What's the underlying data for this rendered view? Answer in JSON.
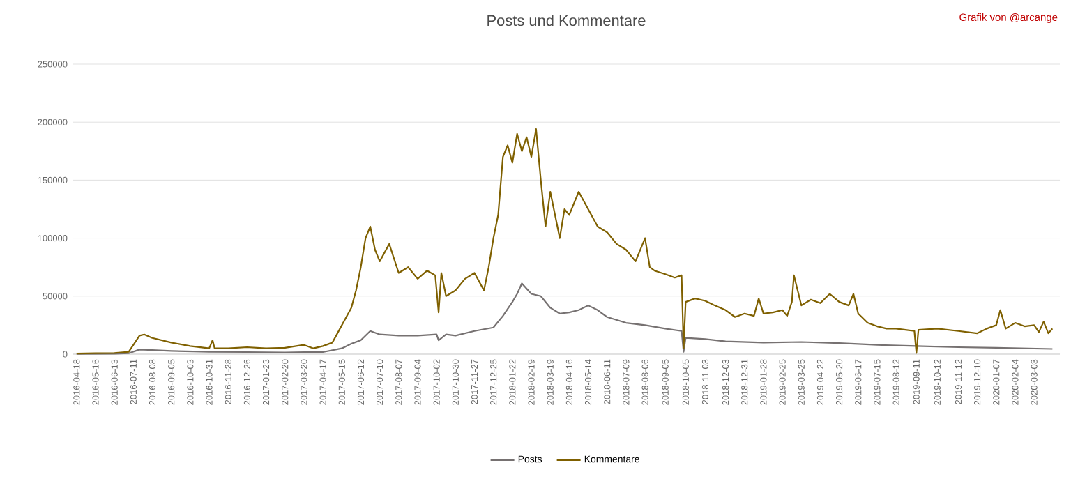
{
  "chart_data": {
    "type": "line",
    "title": "Posts und Kommentare",
    "annotations": [
      "Grafik von @arcange"
    ],
    "xlim": [
      "2016-04-12",
      "2020-04-10"
    ],
    "xticks": [
      "2016-04-18",
      "2016-05-16",
      "2016-06-13",
      "2016-07-11",
      "2016-08-08",
      "2016-09-05",
      "2016-10-03",
      "2016-10-31",
      "2016-11-28",
      "2016-12-26",
      "2017-01-23",
      "2017-02-20",
      "2017-03-20",
      "2017-04-17",
      "2017-05-15",
      "2017-06-12",
      "2017-07-10",
      "2017-08-07",
      "2017-09-04",
      "2017-10-02",
      "2017-10-30",
      "2017-11-27",
      "2017-12-25",
      "2018-01-22",
      "2018-02-19",
      "2018-03-19",
      "2018-04-16",
      "2018-05-14",
      "2018-06-11",
      "2018-07-09",
      "2018-08-06",
      "2018-09-05",
      "2018-10-05",
      "2018-11-03",
      "2018-12-03",
      "2018-12-31",
      "2019-01-28",
      "2019-02-25",
      "2019-03-25",
      "2019-04-22",
      "2019-05-20",
      "2019-06-17",
      "2019-07-15",
      "2019-08-12",
      "2019-09-11",
      "2019-10-12",
      "2019-11-12",
      "2019-12-10",
      "2020-01-07",
      "2020-02-04",
      "2020-03-03"
    ],
    "ylim": [
      0,
      250000
    ],
    "yticks": [
      0,
      50000,
      100000,
      150000,
      200000,
      250000
    ],
    "grid": "y",
    "legend": "bottom",
    "series": [
      {
        "name": "Posts",
        "color": "#767171",
        "x": [
          "2016-04-18",
          "2016-06-13",
          "2016-07-04",
          "2016-07-20",
          "2016-08-08",
          "2016-09-05",
          "2016-10-31",
          "2016-12-26",
          "2017-02-20",
          "2017-03-20",
          "2017-04-17",
          "2017-05-15",
          "2017-05-29",
          "2017-06-12",
          "2017-06-26",
          "2017-07-10",
          "2017-08-07",
          "2017-09-04",
          "2017-10-02",
          "2017-10-05",
          "2017-10-16",
          "2017-10-30",
          "2017-11-27",
          "2017-12-25",
          "2018-01-08",
          "2018-01-22",
          "2018-01-29",
          "2018-02-05",
          "2018-02-19",
          "2018-03-05",
          "2018-03-19",
          "2018-04-02",
          "2018-04-16",
          "2018-04-30",
          "2018-05-14",
          "2018-05-28",
          "2018-06-11",
          "2018-07-09",
          "2018-08-06",
          "2018-09-05",
          "2018-09-29",
          "2018-10-02",
          "2018-10-05",
          "2018-11-03",
          "2018-12-03",
          "2019-01-28",
          "2019-03-25",
          "2019-05-20",
          "2019-07-15",
          "2019-09-11",
          "2019-11-12",
          "2020-01-07",
          "2020-03-30"
        ],
        "values": [
          200,
          400,
          800,
          4000,
          3500,
          2800,
          2000,
          1800,
          1500,
          1800,
          1800,
          5000,
          9000,
          12000,
          20000,
          17000,
          16000,
          16000,
          17000,
          12000,
          17000,
          16000,
          20000,
          23000,
          33000,
          45000,
          52000,
          61000,
          52000,
          50000,
          40000,
          35000,
          36000,
          38000,
          42000,
          38000,
          32000,
          27000,
          25000,
          22000,
          20000,
          2000,
          14000,
          13000,
          11000,
          10000,
          10500,
          9500,
          8000,
          7000,
          6000,
          5500,
          4500
        ]
      },
      {
        "name": "Kommentare",
        "color": "#7f6000",
        "x": [
          "2016-04-18",
          "2016-05-16",
          "2016-06-13",
          "2016-07-04",
          "2016-07-11",
          "2016-07-20",
          "2016-07-27",
          "2016-08-08",
          "2016-09-05",
          "2016-10-03",
          "2016-10-31",
          "2016-11-05",
          "2016-11-08",
          "2016-11-28",
          "2016-12-26",
          "2017-01-23",
          "2017-02-20",
          "2017-03-20",
          "2017-04-03",
          "2017-04-17",
          "2017-05-01",
          "2017-05-15",
          "2017-05-29",
          "2017-06-05",
          "2017-06-12",
          "2017-06-19",
          "2017-06-26",
          "2017-07-03",
          "2017-07-10",
          "2017-07-24",
          "2017-08-07",
          "2017-08-21",
          "2017-09-04",
          "2017-09-18",
          "2017-09-30",
          "2017-10-05",
          "2017-10-09",
          "2017-10-16",
          "2017-10-30",
          "2017-11-13",
          "2017-11-27",
          "2017-12-11",
          "2017-12-18",
          "2017-12-25",
          "2018-01-01",
          "2018-01-08",
          "2018-01-15",
          "2018-01-22",
          "2018-01-29",
          "2018-02-05",
          "2018-02-12",
          "2018-02-19",
          "2018-02-26",
          "2018-03-05",
          "2018-03-12",
          "2018-03-19",
          "2018-03-26",
          "2018-04-02",
          "2018-04-09",
          "2018-04-16",
          "2018-04-30",
          "2018-05-14",
          "2018-05-28",
          "2018-06-11",
          "2018-06-25",
          "2018-07-09",
          "2018-07-23",
          "2018-08-06",
          "2018-08-13",
          "2018-08-20",
          "2018-09-05",
          "2018-09-19",
          "2018-09-29",
          "2018-10-02",
          "2018-10-05",
          "2018-10-19",
          "2018-11-03",
          "2018-11-17",
          "2018-12-03",
          "2018-12-17",
          "2018-12-31",
          "2019-01-14",
          "2019-01-21",
          "2019-01-28",
          "2019-02-11",
          "2019-02-25",
          "2019-03-04",
          "2019-03-11",
          "2019-03-14",
          "2019-03-25",
          "2019-04-08",
          "2019-04-22",
          "2019-05-06",
          "2019-05-20",
          "2019-06-03",
          "2019-06-10",
          "2019-06-17",
          "2019-07-01",
          "2019-07-15",
          "2019-07-29",
          "2019-08-12",
          "2019-08-26",
          "2019-09-08",
          "2019-09-11",
          "2019-09-14",
          "2019-10-12",
          "2019-11-12",
          "2019-11-26",
          "2019-12-10",
          "2019-12-24",
          "2020-01-07",
          "2020-01-13",
          "2020-01-21",
          "2020-02-04",
          "2020-02-18",
          "2020-03-03",
          "2020-03-10",
          "2020-03-17",
          "2020-03-24",
          "2020-03-30"
        ],
        "values": [
          500,
          800,
          1000,
          2000,
          8000,
          16000,
          17000,
          14000,
          10000,
          7000,
          5000,
          12000,
          5000,
          5000,
          6000,
          5000,
          5500,
          8000,
          5000,
          7000,
          10000,
          25000,
          40000,
          55000,
          75000,
          100000,
          110000,
          90000,
          80000,
          95000,
          70000,
          75000,
          65000,
          72000,
          68000,
          36000,
          70000,
          50000,
          55000,
          65000,
          70000,
          55000,
          75000,
          100000,
          120000,
          170000,
          180000,
          165000,
          190000,
          175000,
          187000,
          170000,
          194000,
          150000,
          110000,
          140000,
          120000,
          100000,
          125000,
          120000,
          140000,
          125000,
          110000,
          105000,
          95000,
          90000,
          80000,
          100000,
          75000,
          72000,
          69000,
          66000,
          68000,
          5000,
          45000,
          48000,
          46000,
          42000,
          38000,
          32000,
          35000,
          33000,
          48000,
          35000,
          36000,
          38000,
          33000,
          45000,
          68000,
          42000,
          47000,
          44000,
          52000,
          45000,
          42000,
          52000,
          35000,
          27000,
          24000,
          22000,
          22000,
          21000,
          20000,
          1000,
          21000,
          22000,
          20000,
          19000,
          18000,
          22000,
          25000,
          38000,
          22000,
          27000,
          24000,
          25000,
          19000,
          28000,
          18000,
          22000
        ]
      }
    ]
  }
}
